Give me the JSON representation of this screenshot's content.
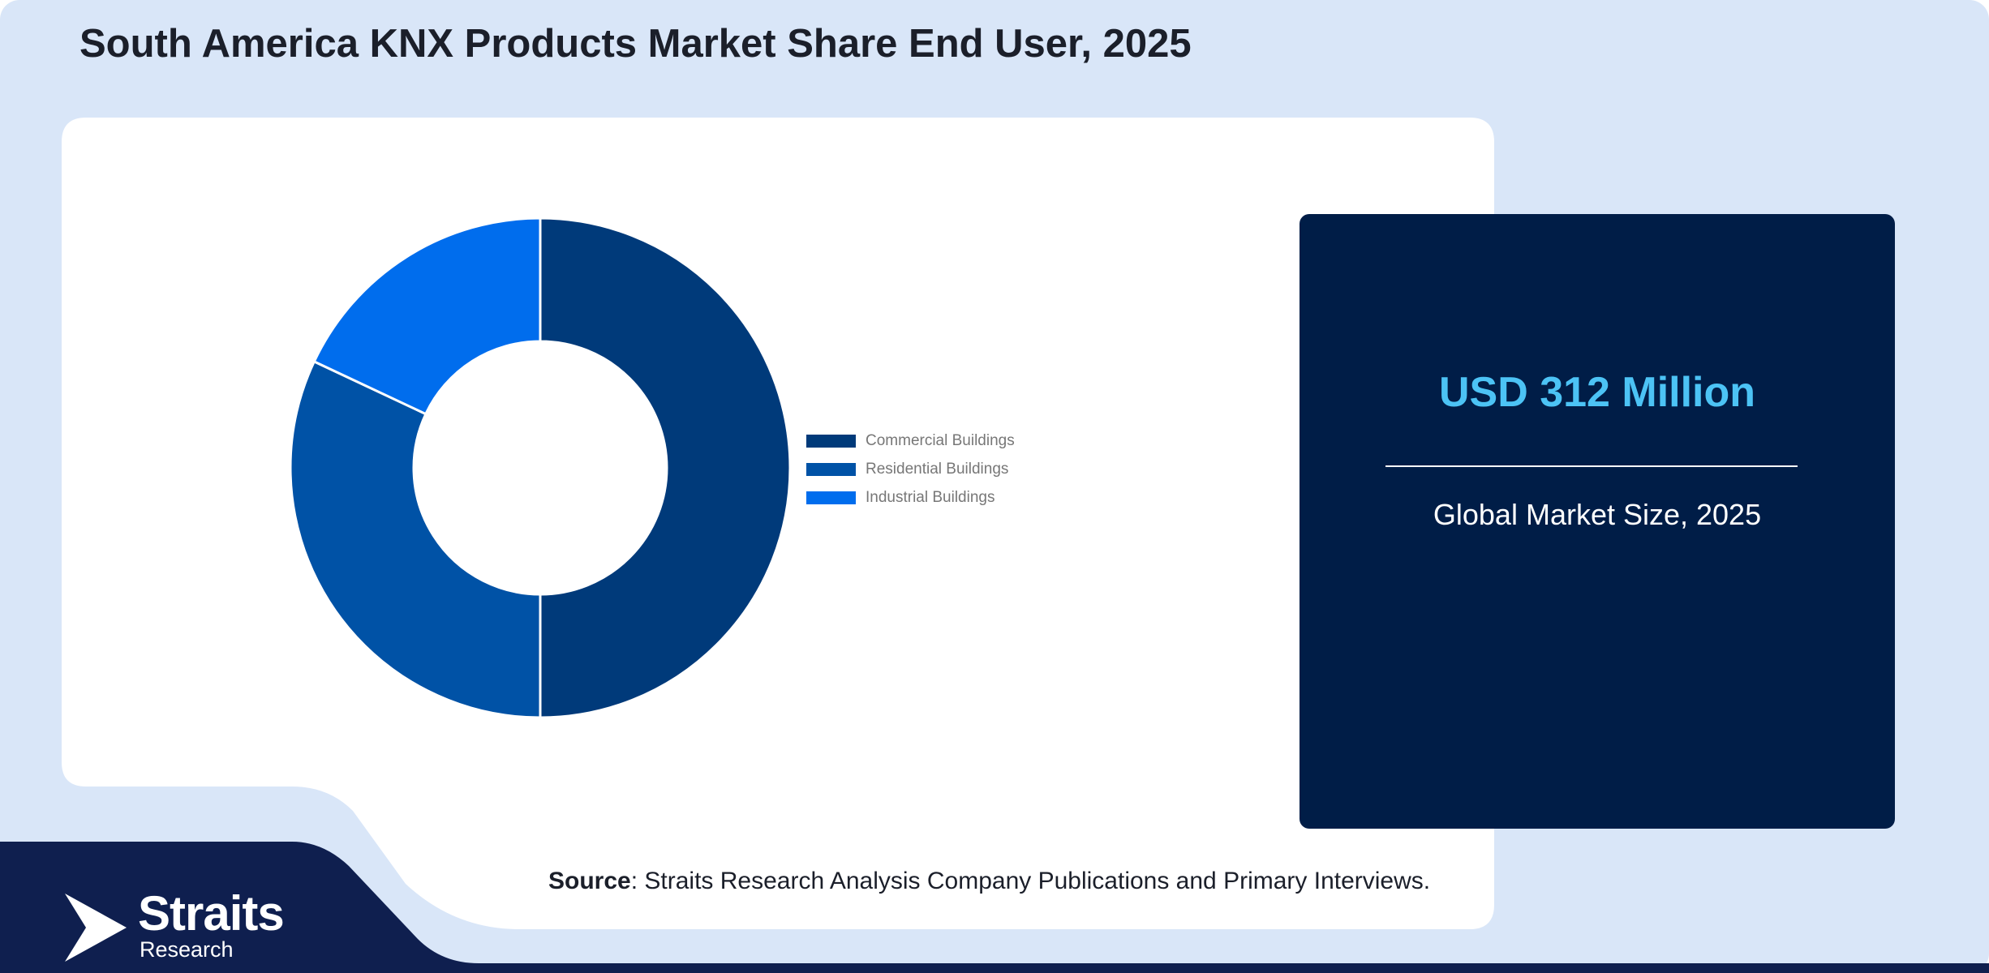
{
  "title": "South America KNX Products Market Share End User, 2025",
  "chart_data": {
    "type": "pie",
    "variant": "donut",
    "categories": [
      "Commercial Buildings",
      "Residential Buildings",
      "Industrial Buildings"
    ],
    "values": [
      50,
      32,
      18
    ],
    "unit": "%",
    "colors": [
      "#003a7a",
      "#0052a6",
      "#006ded"
    ],
    "legend_position": "right",
    "title": ""
  },
  "stat": {
    "value": "USD 312 Million",
    "label": "Global Market Size, 2025"
  },
  "source": {
    "prefix": "Source",
    "text": ": Straits Research Analysis Company Publications and Primary Interviews."
  },
  "logo": {
    "name": "Straits",
    "subtitle": "Research",
    "icon": "straits-arrow-icon"
  },
  "colors": {
    "page_background": "#d9e6f8",
    "card_background": "#ffffff",
    "stat_background": "#001d47",
    "stat_value": "#4cc3f5",
    "footer_band": "#0f1f4f"
  }
}
